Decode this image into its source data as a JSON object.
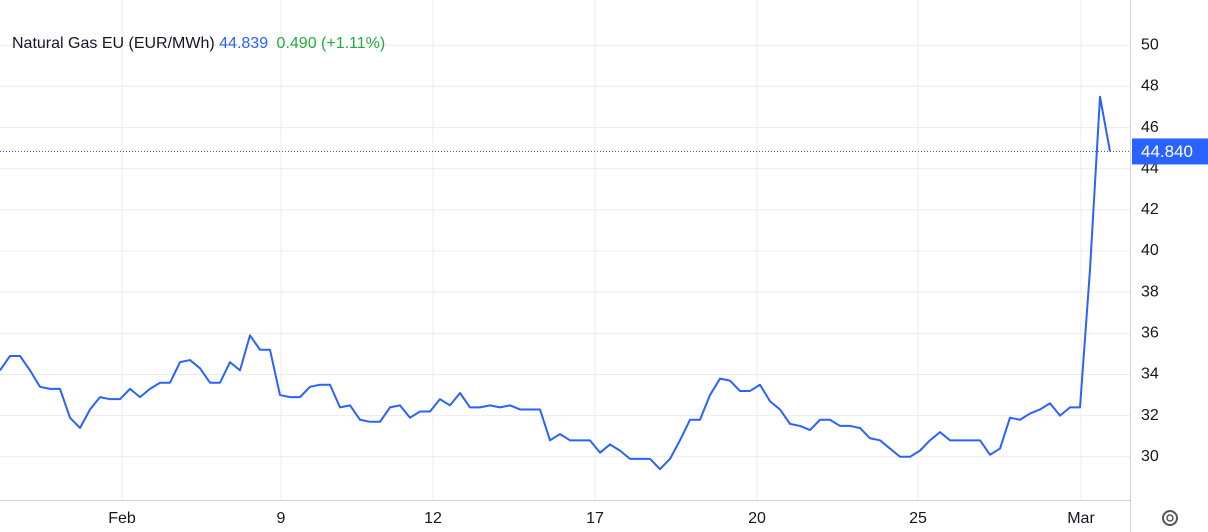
{
  "chart_data": {
    "type": "line",
    "title": "Natural Gas EU (EUR/MWh)",
    "last": "44.839",
    "change": "0.490 (+1.11%)",
    "last_price": {
      "value": 44.84,
      "label": "44.840"
    },
    "x": [
      0,
      1,
      2,
      3,
      4,
      5,
      6,
      7,
      8,
      9,
      10,
      11,
      12,
      13,
      14,
      15,
      16,
      17,
      18,
      19,
      20,
      21,
      22,
      23,
      24,
      25,
      26,
      27,
      28,
      29,
      30,
      31,
      32,
      33,
      34,
      35,
      36,
      37,
      38,
      39,
      40,
      41,
      42,
      43,
      44,
      45,
      46,
      47,
      48,
      49,
      50,
      51,
      52,
      53,
      54,
      55,
      56,
      57,
      58,
      59,
      60,
      61,
      62,
      63,
      64,
      65,
      66,
      67,
      68,
      69,
      70,
      71,
      72,
      73,
      74,
      75,
      76,
      77,
      78,
      79,
      80,
      81,
      82,
      83,
      84,
      85,
      86,
      87,
      88,
      89,
      90,
      91,
      92,
      93,
      94,
      95,
      96,
      97,
      98,
      99,
      100,
      101,
      102,
      103,
      104,
      105,
      106,
      107,
      108,
      109,
      110,
      111
    ],
    "series": [
      {
        "name": "Natural Gas EU",
        "color": "#2962ff",
        "values": [
          34.2,
          34.9,
          34.9,
          34.2,
          33.4,
          33.3,
          33.3,
          31.9,
          31.4,
          32.3,
          32.9,
          32.8,
          32.8,
          33.3,
          32.9,
          33.3,
          33.6,
          33.6,
          34.6,
          34.7,
          34.3,
          33.6,
          33.6,
          34.6,
          34.2,
          35.9,
          35.2,
          35.2,
          33.0,
          32.9,
          32.9,
          33.4,
          33.5,
          33.5,
          32.4,
          32.5,
          31.8,
          31.7,
          31.7,
          32.4,
          32.5,
          31.9,
          32.2,
          32.2,
          32.8,
          32.5,
          33.1,
          32.4,
          32.4,
          32.5,
          32.4,
          32.5,
          32.3,
          32.3,
          32.3,
          30.8,
          31.1,
          30.8,
          30.8,
          30.8,
          30.2,
          30.6,
          30.3,
          29.9,
          29.9,
          29.9,
          29.4,
          29.9,
          30.8,
          31.8,
          31.8,
          33.0,
          33.8,
          33.7,
          33.2,
          33.2,
          33.5,
          32.7,
          32.3,
          31.6,
          31.5,
          31.3,
          31.8,
          31.8,
          31.5,
          31.5,
          31.4,
          30.9,
          30.8,
          30.4,
          30.0,
          30.0,
          30.3,
          30.8,
          31.2,
          30.8,
          30.8,
          30.8,
          30.8,
          30.1,
          30.4,
          31.9,
          31.8,
          32.1,
          32.3,
          32.6,
          32.0,
          32.4,
          32.4,
          39.1,
          47.5,
          44.84
        ]
      }
    ],
    "xlim": [
      0,
      113
    ],
    "xticks": [
      {
        "value": 12.2,
        "label": "Feb"
      },
      {
        "value": 28.1,
        "label": "9"
      },
      {
        "value": 43.3,
        "label": "12"
      },
      {
        "value": 59.5,
        "label": "17"
      },
      {
        "value": 75.7,
        "label": "20"
      },
      {
        "value": 91.8,
        "label": "25"
      },
      {
        "value": 108.1,
        "label": "Mar"
      }
    ],
    "ylim": [
      27.9,
      52.2
    ],
    "yticks": [
      30,
      32,
      34,
      36,
      38,
      40,
      42,
      44,
      46,
      48,
      50
    ],
    "grid": true
  }
}
